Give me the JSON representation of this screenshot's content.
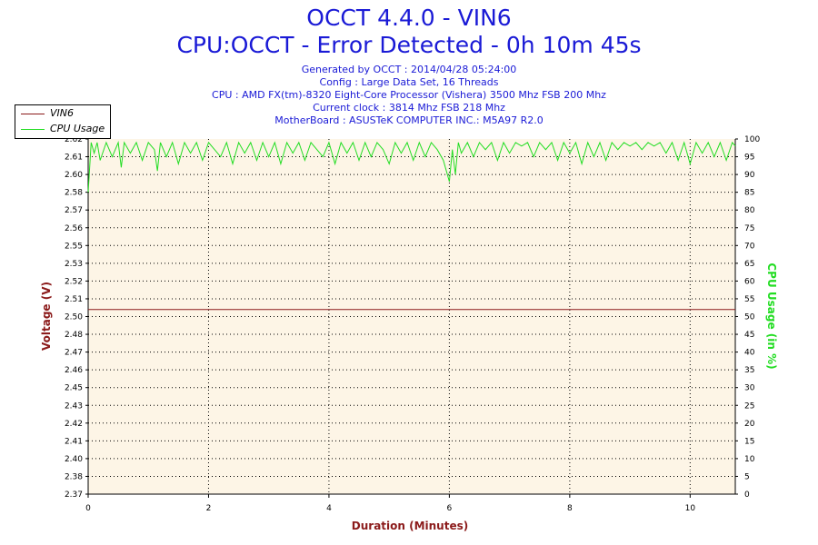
{
  "header": {
    "title": "OCCT 4.4.0 - VIN6",
    "subtitle": "CPU:OCCT - Error Detected - 0h 10m 45s",
    "lines": [
      "Generated by OCCT : 2014/04/28 05:24:00",
      "Config : Large Data Set, 16 Threads",
      "CPU : AMD FX(tm)-8320 Eight-Core Processor (Vishera) 3500 Mhz FSB 200 Mhz",
      "Current clock : 3814 Mhz FSB 218 Mhz",
      "MotherBoard : ASUSTeK COMPUTER INC.: M5A97 R2.0"
    ]
  },
  "colors": {
    "voltage": "#8b1a1a",
    "cpu": "#22dd22",
    "plot_bg": "#fdf5e6",
    "title": "#1a1ad6"
  },
  "chart_data": {
    "type": "line",
    "xlabel": "Duration (Minutes)",
    "ylabel_left": "Voltage (V)",
    "ylabel_right": "CPU Usage (in %)",
    "xlim": [
      0,
      10.75
    ],
    "x_ticks": [
      "0",
      "2",
      "4",
      "6",
      "8",
      "10"
    ],
    "ylim_left": [
      2.37,
      2.62
    ],
    "y_ticks_left": [
      "2.37",
      "2.38",
      "2.40",
      "2.41",
      "2.42",
      "2.43",
      "2.45",
      "2.46",
      "2.47",
      "2.48",
      "2.50",
      "2.51",
      "2.52",
      "2.53",
      "2.55",
      "2.56",
      "2.57",
      "2.58",
      "2.60",
      "2.61",
      "2.62"
    ],
    "ylim_right": [
      0,
      100
    ],
    "y_ticks_right": [
      "0",
      "5",
      "10",
      "15",
      "20",
      "25",
      "30",
      "35",
      "40",
      "45",
      "50",
      "55",
      "60",
      "65",
      "70",
      "75",
      "80",
      "85",
      "90",
      "95",
      "100"
    ],
    "grid": true,
    "legend_position": "top-left",
    "series": [
      {
        "name": "VIN6",
        "axis": "left",
        "x": [
          0,
          10.75
        ],
        "values": [
          2.5,
          2.5
        ]
      },
      {
        "name": "CPU Usage",
        "axis": "right",
        "x": [
          0,
          0.05,
          0.1,
          0.15,
          0.2,
          0.3,
          0.4,
          0.5,
          0.55,
          0.6,
          0.7,
          0.8,
          0.9,
          1.0,
          1.1,
          1.15,
          1.2,
          1.3,
          1.4,
          1.5,
          1.6,
          1.7,
          1.8,
          1.9,
          2.0,
          2.1,
          2.2,
          2.3,
          2.4,
          2.5,
          2.6,
          2.7,
          2.8,
          2.9,
          3.0,
          3.1,
          3.2,
          3.3,
          3.4,
          3.5,
          3.6,
          3.7,
          3.8,
          3.9,
          4.0,
          4.1,
          4.2,
          4.3,
          4.4,
          4.5,
          4.6,
          4.7,
          4.8,
          4.9,
          5.0,
          5.1,
          5.2,
          5.3,
          5.4,
          5.5,
          5.6,
          5.7,
          5.8,
          5.9,
          6.0,
          6.05,
          6.1,
          6.15,
          6.2,
          6.3,
          6.4,
          6.5,
          6.6,
          6.7,
          6.8,
          6.9,
          7.0,
          7.1,
          7.2,
          7.3,
          7.4,
          7.5,
          7.6,
          7.7,
          7.8,
          7.9,
          8.0,
          8.1,
          8.2,
          8.3,
          8.4,
          8.5,
          8.6,
          8.7,
          8.8,
          8.9,
          9.0,
          9.1,
          9.2,
          9.3,
          9.4,
          9.5,
          9.6,
          9.7,
          9.8,
          9.9,
          10.0,
          10.1,
          10.2,
          10.3,
          10.4,
          10.5,
          10.6,
          10.7,
          10.75
        ],
        "values": [
          85,
          99,
          96,
          99,
          94,
          99,
          95,
          99,
          92,
          99,
          96,
          99,
          94,
          99,
          97,
          91,
          99,
          95,
          99,
          93,
          99,
          96,
          99,
          94,
          99,
          97,
          95,
          99,
          93,
          99,
          96,
          99,
          94,
          99,
          95,
          99,
          93,
          99,
          96,
          99,
          94,
          99,
          97,
          95,
          99,
          93,
          99,
          96,
          99,
          94,
          99,
          95,
          99,
          97,
          93,
          99,
          96,
          99,
          94,
          99,
          95,
          99,
          97,
          94,
          88,
          97,
          90,
          99,
          96,
          99,
          95,
          99,
          97,
          99,
          94,
          99,
          96,
          99,
          98,
          99,
          95,
          99,
          97,
          99,
          94,
          99,
          96,
          99,
          93,
          99,
          95,
          99,
          94,
          99,
          97,
          99,
          98,
          99,
          97,
          99,
          98,
          99,
          96,
          99,
          94,
          99,
          93,
          99,
          96,
          99,
          95,
          99,
          94,
          99,
          98
        ]
      }
    ]
  }
}
